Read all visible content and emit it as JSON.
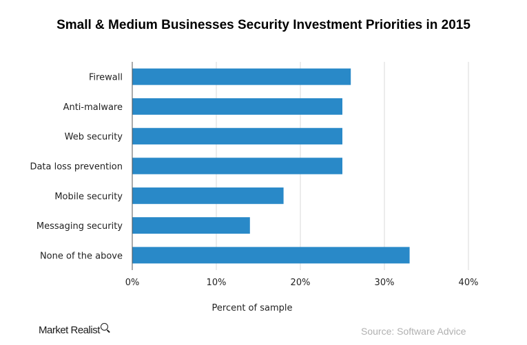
{
  "chart_data": {
    "type": "bar",
    "orientation": "horizontal",
    "title": "Small & Medium Businesses Security Investment Priorities in 2015",
    "xlabel": "Percent of sample",
    "ylabel": "",
    "categories": [
      "Firewall",
      "Anti-malware",
      "Web security",
      "Data loss prevention",
      "Mobile security",
      "Messaging security",
      "None of the above"
    ],
    "values": [
      26,
      25,
      25,
      25,
      18,
      14,
      33
    ],
    "xlim": [
      0,
      40
    ],
    "xticks": [
      "0%",
      "10%",
      "20%",
      "30%",
      "40%"
    ],
    "xtick_values": [
      0,
      10,
      20,
      30,
      40
    ],
    "grid": "vertical",
    "bar_color": "#2989c8"
  },
  "footer": {
    "logo_text": "Market Realist",
    "source": "Source:  Software Advice"
  }
}
